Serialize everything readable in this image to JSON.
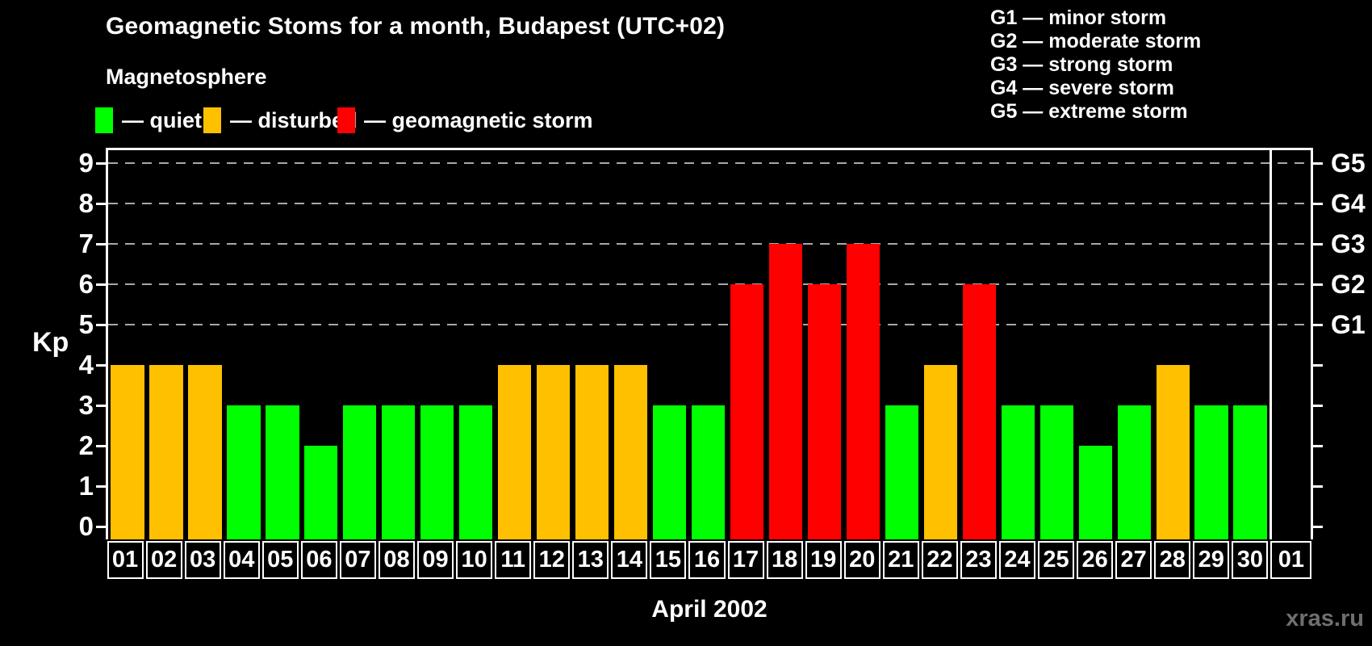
{
  "title": "Geomagnetic Stoms for a month, Budapest (UTC+02)",
  "subtitle": "Magnetosphere",
  "legend": {
    "items": [
      {
        "key": "quiet",
        "label": "— quiet",
        "color": "#00ff00"
      },
      {
        "key": "disturbed",
        "label": "— disturbed",
        "color": "#ffc000"
      },
      {
        "key": "storm",
        "label": "— geomagnetic storm",
        "color": "#ff0000"
      }
    ]
  },
  "storm_scale_legend": [
    "G1 — minor storm",
    "G2 — moderate storm",
    "G3 — strong storm",
    "G4 — severe storm",
    "G5 — extreme storm"
  ],
  "axes": {
    "y_label": "Kp",
    "y_ticks": [
      0,
      1,
      2,
      3,
      4,
      5,
      6,
      7,
      8,
      9
    ],
    "right_axis_labels": [
      {
        "kp": 5,
        "label": "G1"
      },
      {
        "kp": 6,
        "label": "G2"
      },
      {
        "kp": 7,
        "label": "G3"
      },
      {
        "kp": 8,
        "label": "G4"
      },
      {
        "kp": 9,
        "label": "G5"
      }
    ],
    "x_label": "April 2002"
  },
  "watermark": "xras.ru",
  "chart_data": {
    "type": "bar",
    "title": "Geomagnetic Stoms for a month, Budapest (UTC+02)",
    "xlabel": "April 2002",
    "ylabel": "Kp",
    "ylim": [
      0,
      9
    ],
    "categories": [
      "01",
      "02",
      "03",
      "04",
      "05",
      "06",
      "07",
      "08",
      "09",
      "10",
      "11",
      "12",
      "13",
      "14",
      "15",
      "16",
      "17",
      "18",
      "19",
      "20",
      "21",
      "22",
      "23",
      "24",
      "25",
      "26",
      "27",
      "28",
      "29",
      "30",
      "01"
    ],
    "values": [
      4,
      4,
      4,
      3,
      3,
      2,
      3,
      3,
      3,
      3,
      4,
      4,
      4,
      4,
      3,
      3,
      6,
      7,
      6,
      7,
      3,
      4,
      6,
      3,
      3,
      2,
      3,
      4,
      3,
      3,
      null
    ],
    "statuses": [
      "disturbed",
      "disturbed",
      "disturbed",
      "quiet",
      "quiet",
      "quiet",
      "quiet",
      "quiet",
      "quiet",
      "quiet",
      "disturbed",
      "disturbed",
      "disturbed",
      "disturbed",
      "quiet",
      "quiet",
      "storm",
      "storm",
      "storm",
      "storm",
      "quiet",
      "disturbed",
      "storm",
      "quiet",
      "quiet",
      "quiet",
      "quiet",
      "disturbed",
      "quiet",
      "quiet",
      null
    ],
    "status_colors": {
      "quiet": "#00ff00",
      "disturbed": "#ffc000",
      "storm": "#ff0000"
    },
    "gridlines_at_kp": [
      5,
      6,
      7,
      8,
      9
    ],
    "grid": "horizontal dashed lines at storm levels only",
    "legend_position": "top-left"
  }
}
